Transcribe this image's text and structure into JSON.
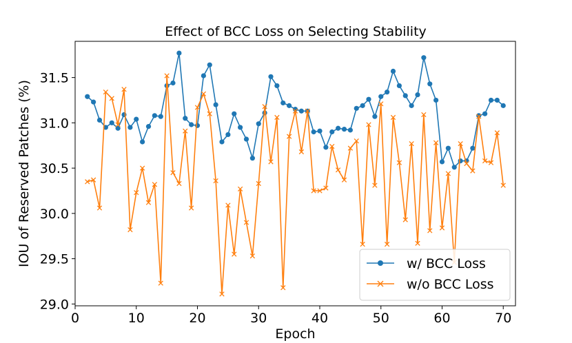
{
  "chart_data": {
    "type": "line",
    "title": "Effect of BCC Loss on Selecting Stability",
    "xlabel": "Epoch",
    "ylabel": "IOU of Reserved Patches (%)",
    "xlim": [
      0,
      72
    ],
    "ylim": [
      28.98,
      31.9
    ],
    "xticks": [
      0,
      10,
      20,
      30,
      40,
      50,
      60,
      70
    ],
    "yticks": [
      29.0,
      29.5,
      30.0,
      30.5,
      31.0,
      31.5
    ],
    "ytick_labels": [
      "29.0",
      "29.5",
      "30.0",
      "30.5",
      "31.0",
      "31.5"
    ],
    "grid": false,
    "legend": "lower-right",
    "x": [
      2,
      3,
      4,
      5,
      6,
      7,
      8,
      9,
      10,
      11,
      12,
      13,
      14,
      15,
      16,
      17,
      18,
      19,
      20,
      21,
      22,
      23,
      24,
      25,
      26,
      27,
      28,
      29,
      30,
      31,
      32,
      33,
      34,
      35,
      36,
      37,
      38,
      39,
      40,
      41,
      42,
      43,
      44,
      45,
      46,
      47,
      48,
      49,
      50,
      51,
      52,
      53,
      54,
      55,
      56,
      57,
      58,
      59,
      60,
      61,
      62,
      63,
      64,
      65,
      66,
      67,
      68,
      69,
      70
    ],
    "series": [
      {
        "name": "w/ BCC Loss",
        "color": "#1f77b4",
        "marker": "circle",
        "values": [
          31.29,
          31.23,
          31.03,
          30.95,
          31.0,
          30.94,
          31.09,
          30.95,
          31.04,
          30.79,
          30.96,
          31.08,
          31.07,
          31.41,
          31.44,
          31.77,
          31.05,
          30.98,
          30.97,
          31.52,
          31.64,
          31.2,
          30.79,
          30.87,
          31.1,
          30.95,
          30.82,
          30.61,
          30.99,
          31.11,
          31.51,
          31.41,
          31.22,
          31.19,
          31.15,
          31.13,
          31.13,
          30.9,
          30.91,
          30.73,
          30.9,
          30.94,
          30.93,
          30.92,
          31.16,
          31.19,
          31.26,
          31.07,
          31.29,
          31.34,
          31.57,
          31.41,
          31.3,
          31.19,
          31.31,
          31.72,
          31.43,
          31.25,
          30.57,
          30.72,
          30.51,
          30.58,
          30.58,
          30.72,
          31.08,
          31.1,
          31.25,
          31.25,
          31.19
        ]
      },
      {
        "name": "w/o BCC Loss",
        "color": "#ff7f0e",
        "marker": "x",
        "values": [
          30.35,
          30.37,
          30.06,
          31.34,
          31.27,
          30.98,
          31.37,
          29.82,
          30.23,
          30.5,
          30.12,
          30.32,
          29.23,
          31.52,
          30.45,
          30.33,
          30.91,
          30.06,
          31.17,
          31.32,
          31.1,
          30.36,
          29.11,
          30.09,
          29.55,
          30.27,
          29.9,
          29.53,
          30.33,
          31.18,
          30.57,
          31.06,
          29.18,
          30.85,
          31.13,
          30.68,
          31.13,
          30.25,
          30.25,
          30.28,
          30.74,
          30.48,
          30.37,
          30.72,
          30.8,
          29.66,
          30.98,
          30.31,
          31.21,
          29.66,
          31.06,
          30.56,
          29.93,
          30.77,
          29.67,
          31.09,
          29.81,
          30.78,
          29.84,
          30.44,
          29.46,
          30.77,
          30.55,
          30.47,
          31.07,
          30.58,
          30.56,
          30.89,
          30.31
        ]
      }
    ]
  }
}
